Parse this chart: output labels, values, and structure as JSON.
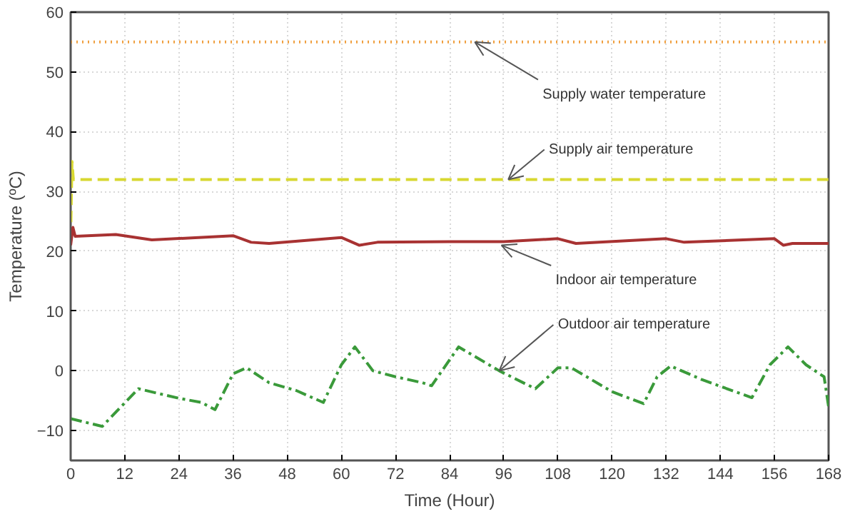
{
  "chart_data": {
    "type": "line",
    "xlabel": "Time (Hour)",
    "ylabel": "Temperature (ºC)",
    "xlim": [
      0,
      168
    ],
    "ylim": [
      -15,
      60
    ],
    "xticks": [
      0,
      12,
      24,
      36,
      48,
      60,
      72,
      84,
      96,
      108,
      120,
      132,
      144,
      156,
      168
    ],
    "yticks": [
      -10,
      0,
      10,
      20,
      30,
      40,
      50,
      60
    ],
    "grid": true,
    "marker": "none",
    "series": [
      {
        "color": "#f0a040",
        "line_style": "dotted",
        "x": [
          0,
          168
        ],
        "values": [
          55,
          55
        ]
      },
      {
        "color": "#d8d830",
        "line_style": "dashed",
        "x": [
          0,
          0.3,
          0.6,
          1,
          168
        ],
        "values": [
          22,
          35,
          32,
          32,
          32
        ]
      },
      {
        "color": "#a83232",
        "line_style": "solid",
        "x": [
          0,
          0.5,
          1,
          10,
          18,
          36,
          40,
          44,
          60,
          64,
          68,
          84,
          96,
          108,
          112,
          132,
          136,
          156,
          158,
          160,
          168
        ],
        "values": [
          21,
          24,
          22.5,
          22.8,
          21.9,
          22.6,
          21.5,
          21.3,
          22.3,
          21,
          21.5,
          21.6,
          21.6,
          22.1,
          21.3,
          22.1,
          21.5,
          22.1,
          21,
          21.3,
          21.3
        ]
      },
      {
        "color": "#3a9a3a",
        "line_style": "dashdot",
        "x": [
          0,
          7,
          15,
          24,
          29,
          32,
          36,
          39,
          44,
          50,
          56,
          60,
          63,
          67,
          72,
          78,
          80,
          86,
          95,
          103,
          108,
          111,
          120,
          127,
          130,
          133,
          140,
          151,
          155,
          159,
          163,
          167,
          168
        ],
        "values": [
          -8,
          -9.3,
          -3,
          -4.6,
          -5.3,
          -6.5,
          -0.5,
          0.5,
          -2,
          -3.3,
          -5.3,
          1,
          4,
          0,
          -1,
          -2,
          -2.5,
          4,
          0,
          -3,
          0.5,
          0.5,
          -3.5,
          -5.5,
          -1,
          0.8,
          -1.5,
          -4.5,
          1,
          4,
          1,
          -1,
          -6
        ]
      }
    ],
    "annotations": [
      {
        "text": "Supply water temperature",
        "x": 89.6,
        "y": 55
      },
      {
        "text": "Supply air temperature",
        "x": 97,
        "y": 32
      },
      {
        "text": "Indoor air temperature",
        "x": 95.5,
        "y": 21
      },
      {
        "text": "Outdoor air temperature",
        "x": 95,
        "y": 0
      }
    ]
  }
}
